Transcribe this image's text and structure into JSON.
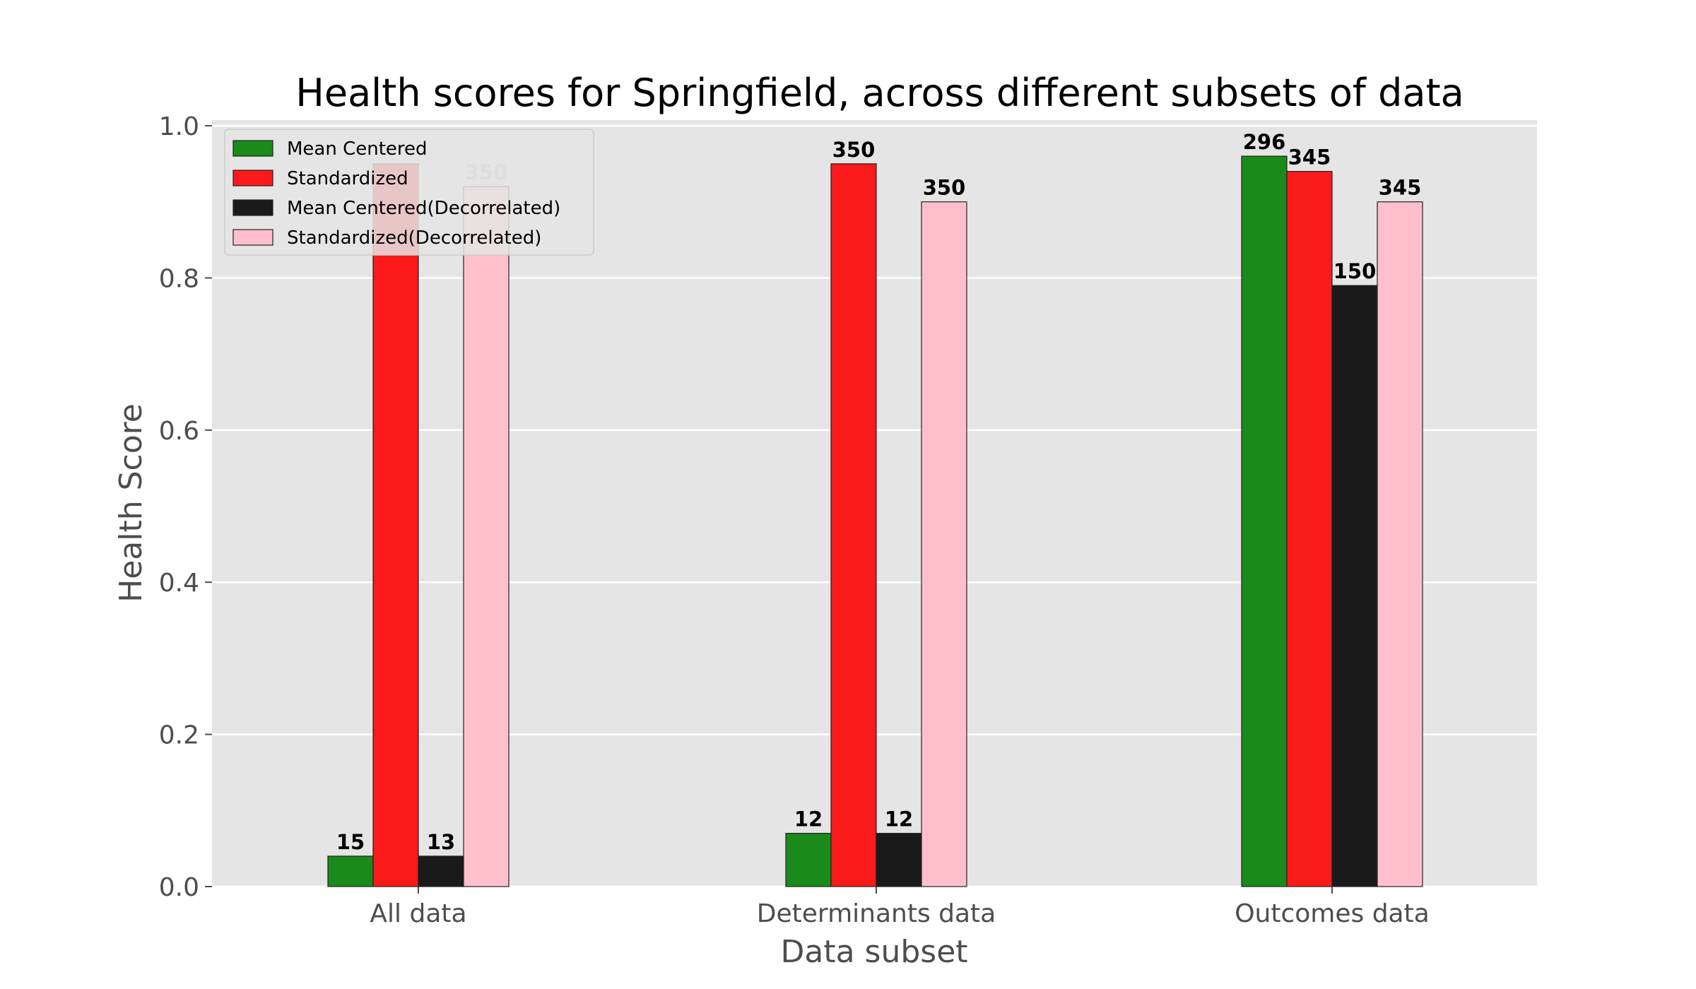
{
  "chart_data": {
    "type": "bar",
    "title": "Health scores for Springfield, across different subsets of data",
    "xlabel": "Data subset",
    "ylabel": "Health Score",
    "ylim": [
      0,
      1.0
    ],
    "yticks": [
      "0.0",
      "0.2",
      "0.4",
      "0.6",
      "0.8",
      "1.0"
    ],
    "grid": true,
    "legend_position": "top-left",
    "categories": [
      "All data",
      "Determinants data",
      "Outcomes data"
    ],
    "series": [
      {
        "name": "Mean Centered",
        "color": "#1a8a1a",
        "values": [
          0.04,
          0.07,
          0.96
        ],
        "labels": [
          "15",
          "12",
          "296"
        ]
      },
      {
        "name": "Standardized",
        "color": "#fa1a1a",
        "values": [
          0.95,
          0.95,
          0.94
        ],
        "labels": [
          "",
          "350",
          "345"
        ]
      },
      {
        "name": "Mean Centered(Decorrelated)",
        "color": "#1a1a1a",
        "values": [
          0.04,
          0.07,
          0.79
        ],
        "labels": [
          "13",
          "12",
          "150"
        ]
      },
      {
        "name": "Standardized(Decorrelated)",
        "color": "#ffc0cb",
        "values": [
          0.92,
          0.9,
          0.9
        ],
        "labels": [
          "350",
          "350",
          "345"
        ]
      }
    ]
  }
}
